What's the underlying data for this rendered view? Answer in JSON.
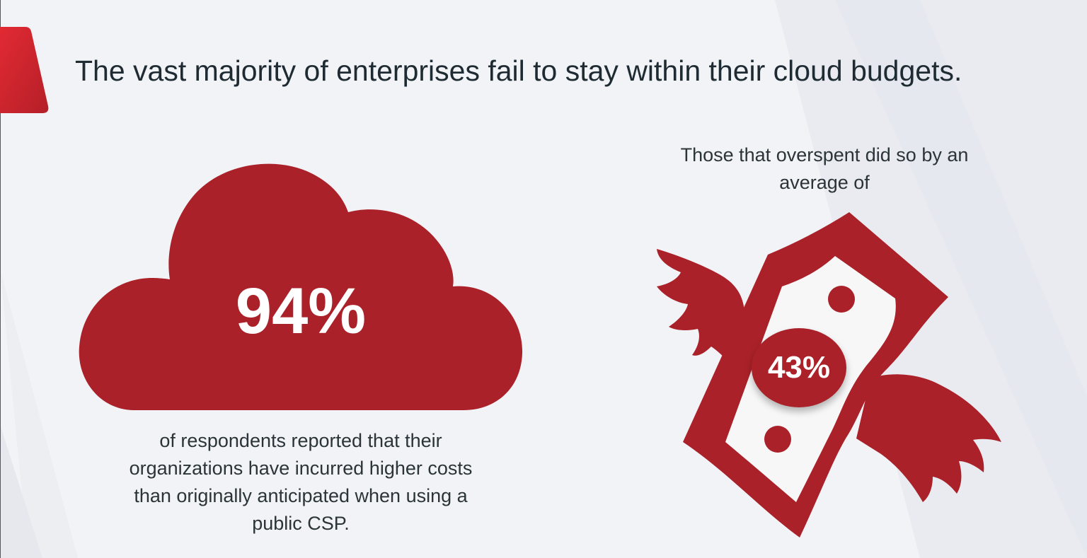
{
  "headline": "The vast majority of enterprises fail to stay within their cloud budgets.",
  "stat_main": {
    "value": "94%",
    "caption": "of respondents reported that their organizations have incurred higher costs than originally anticipated when using a public CSP."
  },
  "stat_secondary": {
    "intro": "Those that overspent did so by an average of",
    "value": "43%"
  },
  "colors": {
    "accent": "#aa2129",
    "accent_light": "#d7232e",
    "text": "#1f2b33",
    "background": "#f2f3f6"
  },
  "icons": [
    "cloud-icon",
    "winged-money-icon"
  ]
}
